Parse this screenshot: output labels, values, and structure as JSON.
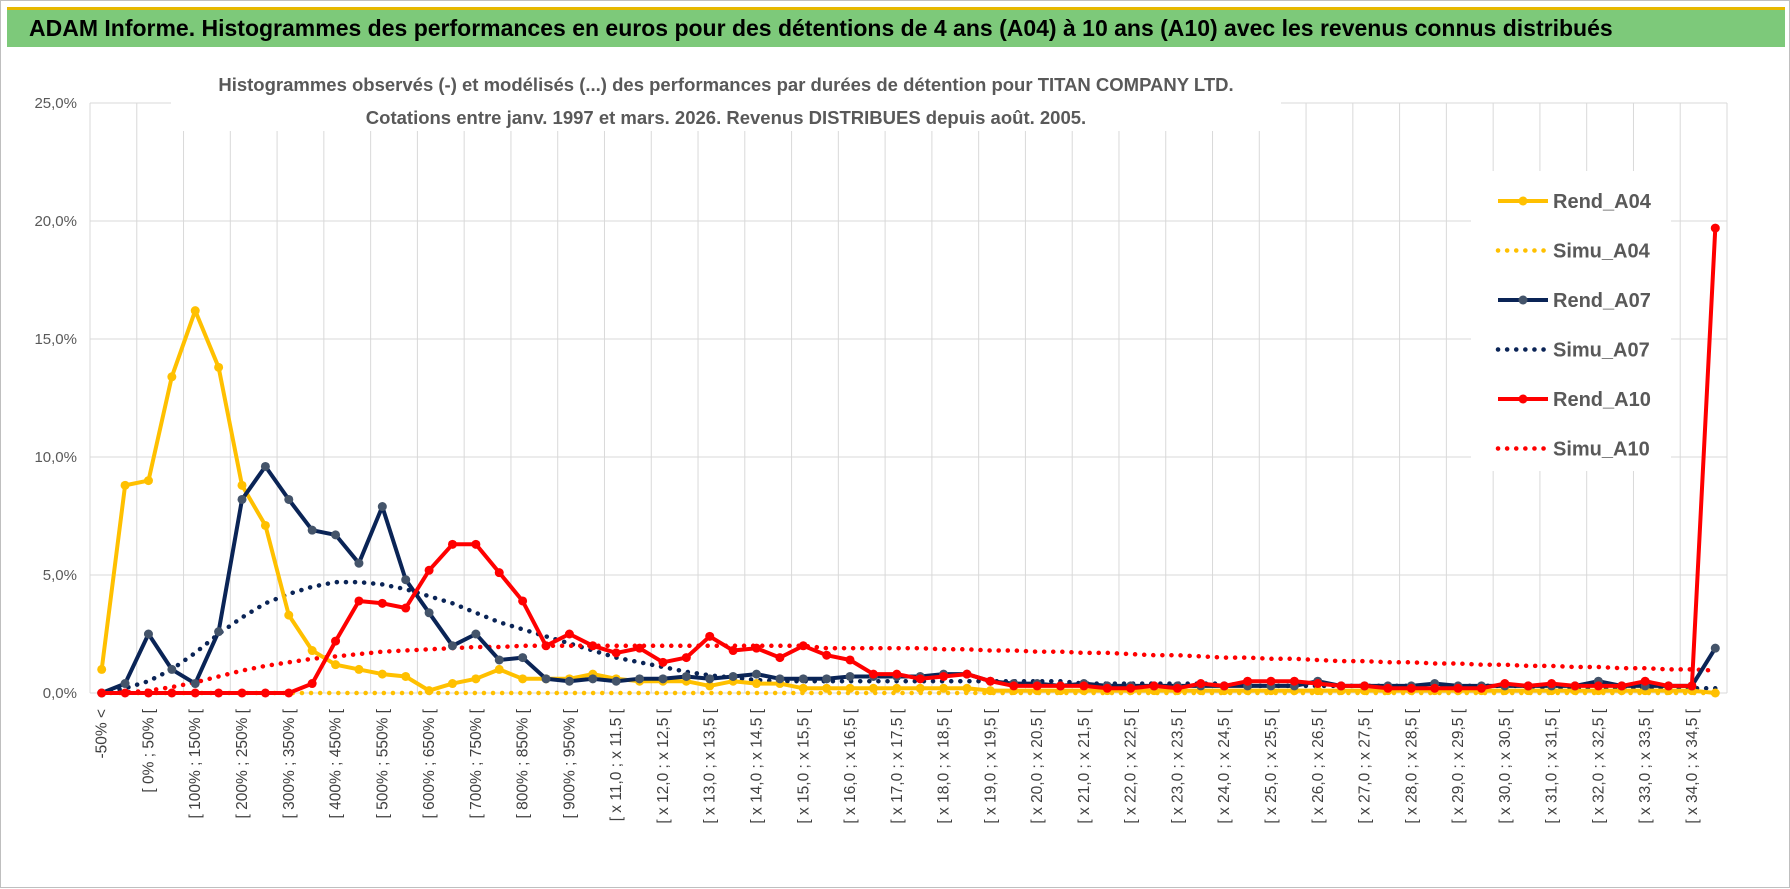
{
  "header": {
    "title": "ADAM Informe. Histogrammes des performances en euros pour des détentions de 4 ans (A04) à 10 ans (A10) avec les revenus connus distribués"
  },
  "chart_data": {
    "type": "line",
    "title_line1": "Histogrammes observés (-) et modélisés (...) des performances par durées de détention pour TITAN  COMPANY LTD.",
    "title_line2": "Cotations entre janv. 1997 et mars. 2026. Revenus DISTRIBUES depuis août. 2005.",
    "ylim": [
      0,
      25
    ],
    "y_ticks": [
      "0,0%",
      "5,0%",
      "10,0%",
      "15,0%",
      "20,0%",
      "25,0%"
    ],
    "y_tick_values": [
      0,
      5,
      10,
      15,
      20,
      25
    ],
    "grid": true,
    "legend_position": "right",
    "n_points": 70,
    "x_tick_labels": [
      "-50% <",
      "[ 0% ; 50% [",
      "[ 100% ; 150% [",
      "[ 200% ; 250% [",
      "[ 300% ; 350% [",
      "[ 400% ; 450% [",
      "[ 500% ; 550% [",
      "[ 600% ; 650% [",
      "[ 700% ; 750% [",
      "[ 800% ; 850% [",
      "[ 900% ; 950% [",
      "[ x 11,0 ; x 11,5 [",
      "[ x 12,0 ; x 12,5 [",
      "[ x 13,0 ; x 13,5 [",
      "[ x 14,0 ; x 14,5 [",
      "[ x 15,0 ; x 15,5 [",
      "[ x 16,0 ; x 16,5 [",
      "[ x 17,0 ; x 17,5 [",
      "[ x 18,0 ; x 18,5 [",
      "[ x 19,0 ; x 19,5 [",
      "[ x 20,0 ; x 20,5 [",
      "[ x 21,0 ; x 21,5 [",
      "[ x 22,0 ; x 22,5 [",
      "[ x 23,0 ; x 23,5 [",
      "[ x 24,0 ; x 24,5 [",
      "[ x 25,0 ; x 25,5 [",
      "[ x 26,0 ; x 26,5 [",
      "[ x 27,0 ; x 27,5 [",
      "[ x 28,0 ; x 28,5 [",
      "[ x 29,0 ; x 29,5 [",
      "[ x 30,0 ; x 30,5 [",
      "[ x 31,0 ; x 31,5 [",
      "[ x 32,0 ; x 32,5 [",
      "[ x 33,0 ; x 33,5 [",
      "[ x 34,0 ; x 34,5 ["
    ],
    "series": [
      {
        "name": "Rend_A04",
        "color": "#ffc000",
        "style": "solid",
        "values": [
          1.0,
          8.8,
          9.0,
          13.4,
          16.2,
          13.8,
          8.8,
          7.1,
          3.3,
          1.8,
          1.2,
          1.0,
          0.8,
          0.7,
          0.1,
          0.4,
          0.6,
          1.0,
          0.6,
          0.6,
          0.6,
          0.8,
          0.6,
          0.5,
          0.5,
          0.5,
          0.3,
          0.5,
          0.4,
          0.4,
          0.2,
          0.2,
          0.2,
          0.2,
          0.2,
          0.2,
          0.2,
          0.2,
          0.1,
          0.1,
          0.1,
          0.1,
          0.1,
          0.1,
          0.1,
          0.1,
          0.1,
          0.1,
          0.1,
          0.1,
          0.1,
          0.1,
          0.1,
          0.1,
          0.1,
          0.1,
          0.1,
          0.1,
          0.1,
          0.1,
          0.1,
          0.1,
          0.1,
          0.1,
          0.1,
          0.1,
          0.1,
          0.1,
          0.1,
          0.0
        ]
      },
      {
        "name": "Simu_A04",
        "color": "#ffc000",
        "style": "dotted",
        "values": [
          0.0,
          0.0,
          0.0,
          0.0,
          0.0,
          0.0,
          0.0,
          0.0,
          0.0,
          0.0,
          0.0,
          0.0,
          0.0,
          0.0,
          0.0,
          0.0,
          0.0,
          0.0,
          0.0,
          0.0,
          0.0,
          0.0,
          0.0,
          0.0,
          0.0,
          0.0,
          0.0,
          0.0,
          0.0,
          0.0,
          0.0,
          0.0,
          0.0,
          0.0,
          0.0,
          0.0,
          0.0,
          0.0,
          0.0,
          0.0,
          0.0,
          0.0,
          0.0,
          0.0,
          0.0,
          0.0,
          0.0,
          0.0,
          0.0,
          0.0,
          0.0,
          0.0,
          0.0,
          0.0,
          0.0,
          0.0,
          0.0,
          0.0,
          0.0,
          0.0,
          0.0,
          0.0,
          0.0,
          0.0,
          0.0,
          0.0,
          0.0,
          0.0,
          0.0,
          0.0
        ]
      },
      {
        "name": "Rend_A07",
        "color": "#0a2456",
        "style": "solid",
        "values": [
          0.0,
          0.4,
          2.5,
          1.0,
          0.4,
          2.6,
          8.2,
          9.6,
          8.2,
          6.9,
          6.7,
          5.5,
          7.9,
          4.8,
          3.4,
          2.0,
          2.5,
          1.4,
          1.5,
          0.6,
          0.5,
          0.6,
          0.5,
          0.6,
          0.6,
          0.7,
          0.6,
          0.7,
          0.8,
          0.6,
          0.6,
          0.6,
          0.7,
          0.7,
          0.7,
          0.7,
          0.8,
          0.8,
          0.5,
          0.4,
          0.4,
          0.3,
          0.4,
          0.3,
          0.3,
          0.3,
          0.3,
          0.3,
          0.3,
          0.3,
          0.3,
          0.3,
          0.5,
          0.3,
          0.3,
          0.3,
          0.3,
          0.4,
          0.3,
          0.3,
          0.3,
          0.3,
          0.3,
          0.3,
          0.5,
          0.3,
          0.3,
          0.3,
          0.3,
          1.9
        ]
      },
      {
        "name": "Simu_A07",
        "color": "#0a2456",
        "style": "dotted",
        "values": [
          0.0,
          0.2,
          0.5,
          1.0,
          1.7,
          2.5,
          3.2,
          3.8,
          4.2,
          4.5,
          4.7,
          4.7,
          4.6,
          4.4,
          4.1,
          3.8,
          3.4,
          3.0,
          2.7,
          2.4,
          2.1,
          1.8,
          1.5,
          1.3,
          1.1,
          0.9,
          0.75,
          0.65,
          0.55,
          0.5,
          0.5,
          0.5,
          0.5,
          0.5,
          0.5,
          0.5,
          0.5,
          0.5,
          0.5,
          0.5,
          0.5,
          0.5,
          0.4,
          0.4,
          0.4,
          0.4,
          0.4,
          0.4,
          0.4,
          0.3,
          0.3,
          0.3,
          0.3,
          0.3,
          0.3,
          0.3,
          0.3,
          0.3,
          0.3,
          0.3,
          0.3,
          0.3,
          0.2,
          0.2,
          0.2,
          0.2,
          0.2,
          0.2,
          0.2,
          0.2
        ]
      },
      {
        "name": "Rend_A10",
        "color": "#ff0000",
        "style": "solid",
        "values": [
          0.0,
          0.0,
          0.0,
          0.0,
          0.0,
          0.0,
          0.0,
          0.0,
          0.0,
          0.4,
          2.2,
          3.9,
          3.8,
          3.6,
          5.2,
          6.3,
          6.3,
          5.1,
          3.9,
          2.0,
          2.5,
          2.0,
          1.7,
          1.9,
          1.3,
          1.5,
          2.4,
          1.8,
          1.9,
          1.5,
          2.0,
          1.6,
          1.4,
          0.8,
          0.8,
          0.6,
          0.7,
          0.8,
          0.5,
          0.3,
          0.3,
          0.3,
          0.3,
          0.2,
          0.2,
          0.3,
          0.2,
          0.4,
          0.3,
          0.5,
          0.5,
          0.5,
          0.4,
          0.3,
          0.3,
          0.2,
          0.2,
          0.2,
          0.2,
          0.2,
          0.4,
          0.3,
          0.4,
          0.3,
          0.3,
          0.3,
          0.5,
          0.3,
          0.3,
          19.7
        ]
      },
      {
        "name": "Simu_A10",
        "color": "#ff0000",
        "style": "dotted",
        "values": [
          0.0,
          0.02,
          0.1,
          0.25,
          0.45,
          0.7,
          0.95,
          1.15,
          1.3,
          1.45,
          1.55,
          1.65,
          1.75,
          1.8,
          1.85,
          1.9,
          1.95,
          1.95,
          2.0,
          2.0,
          2.0,
          2.0,
          2.0,
          2.0,
          2.0,
          2.0,
          2.0,
          2.0,
          2.0,
          2.0,
          2.0,
          1.9,
          1.9,
          1.9,
          1.9,
          1.9,
          1.85,
          1.85,
          1.8,
          1.8,
          1.75,
          1.75,
          1.7,
          1.7,
          1.65,
          1.6,
          1.6,
          1.55,
          1.5,
          1.5,
          1.45,
          1.45,
          1.4,
          1.35,
          1.35,
          1.3,
          1.3,
          1.25,
          1.25,
          1.2,
          1.2,
          1.15,
          1.15,
          1.1,
          1.1,
          1.05,
          1.05,
          1.0,
          1.0,
          0.95
        ]
      }
    ]
  }
}
